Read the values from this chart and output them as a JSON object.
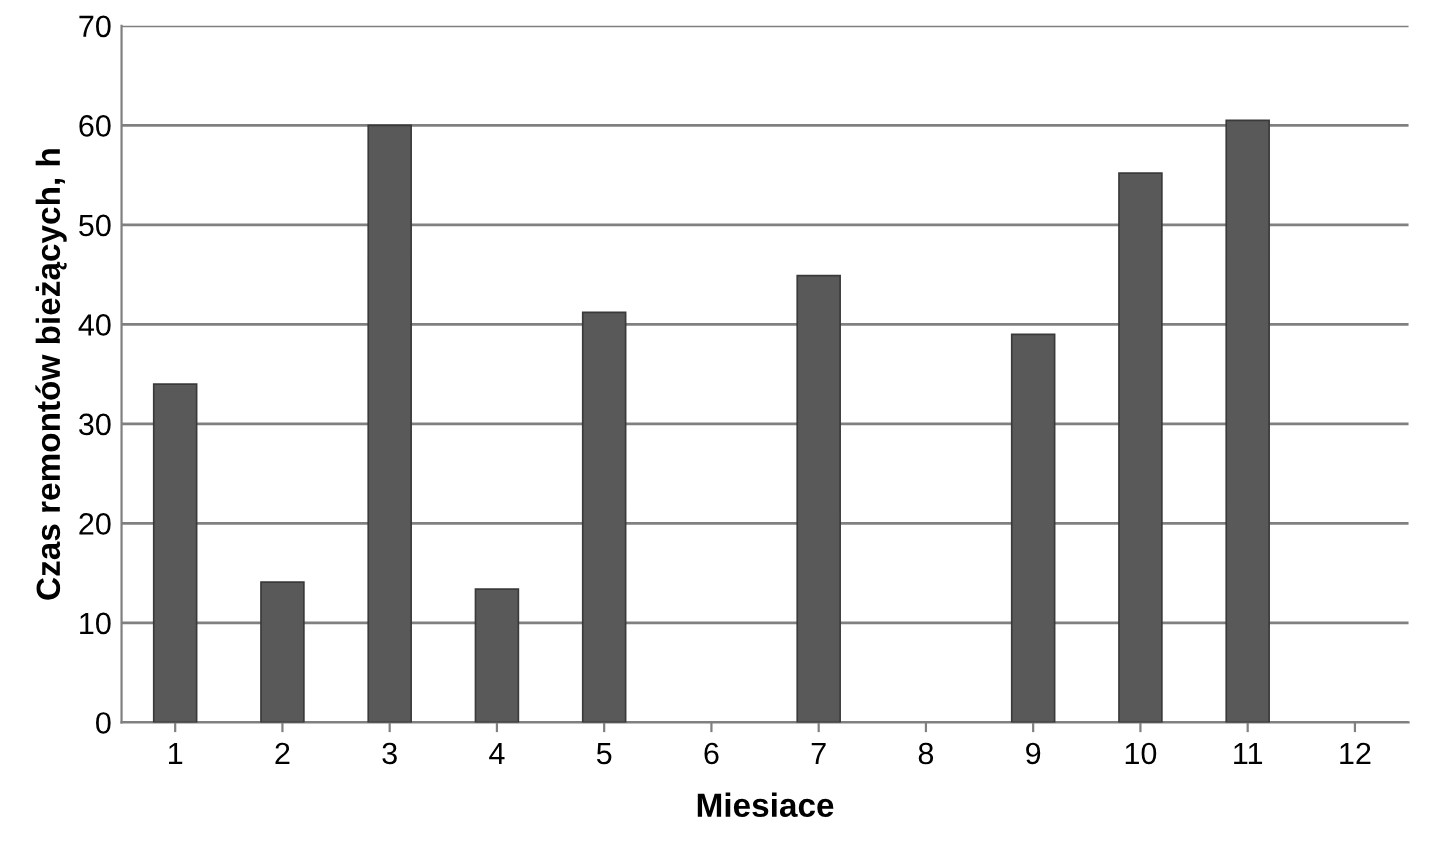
{
  "chart_data": {
    "type": "bar",
    "xlabel": "Miesiace",
    "ylabel": "Czas remontów bieżących, h",
    "categories": [
      "1",
      "2",
      "3",
      "4",
      "5",
      "6",
      "7",
      "8",
      "9",
      "10",
      "11",
      "12"
    ],
    "values": [
      34.0,
      14.1,
      60.0,
      13.4,
      41.2,
      null,
      44.9,
      null,
      39.0,
      55.2,
      60.5,
      null
    ],
    "color": "#595959",
    "ylim": [
      0,
      70
    ],
    "yticks": [
      0,
      10,
      20,
      30,
      40,
      50,
      60,
      70
    ],
    "grid": "y",
    "legend": false
  }
}
